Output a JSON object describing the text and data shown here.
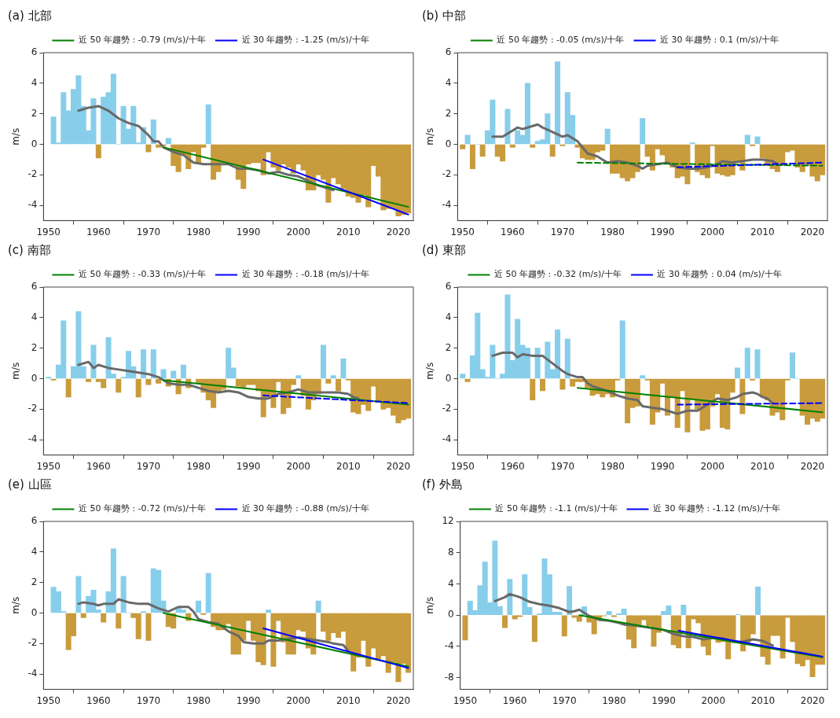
{
  "chart_data": [
    {
      "type": "bar",
      "title": "(a) 北部",
      "ylabel": "m/s",
      "legend": "top",
      "xlim": [
        1949,
        2023
      ],
      "xticks": [
        1950,
        1960,
        1970,
        1980,
        1990,
        2000,
        2010,
        2020
      ],
      "ylim": [
        -5,
        6
      ],
      "yticks": [
        -4,
        -2,
        0,
        2,
        4,
        6
      ],
      "x": [
        1951,
        1952,
        1953,
        1954,
        1955,
        1956,
        1957,
        1958,
        1959,
        1960,
        1961,
        1962,
        1963,
        1964,
        1965,
        1966,
        1967,
        1968,
        1969,
        1970,
        1971,
        1972,
        1973,
        1974,
        1975,
        1976,
        1977,
        1978,
        1979,
        1980,
        1981,
        1982,
        1983,
        1984,
        1985,
        1986,
        1987,
        1988,
        1989,
        1990,
        1991,
        1992,
        1993,
        1994,
        1995,
        1996,
        1997,
        1998,
        1999,
        2000,
        2001,
        2002,
        2003,
        2004,
        2005,
        2006,
        2007,
        2008,
        2009,
        2010,
        2011,
        2012,
        2013,
        2014,
        2015,
        2016,
        2017,
        2018,
        2019,
        2020,
        2021,
        2022
      ],
      "series": [
        {
          "values": [
            1.8,
            0.1,
            3.4,
            2.2,
            3.6,
            4.5,
            2.5,
            0.9,
            3.0,
            -0.9,
            3.1,
            3.4,
            4.6,
            0,
            2.5,
            1.0,
            2.5,
            0.1,
            1.1,
            -0.5,
            1.6,
            -0.2,
            -0.1,
            0.4,
            -1.4,
            -1.8,
            -0.7,
            -1.6,
            -0.5,
            -1.3,
            -0.2,
            2.6,
            -2.3,
            -1.8,
            -1.2,
            -1.3,
            -1.3,
            -2.3,
            -2.9,
            -1.3,
            -1.2,
            -1.2,
            -2.0,
            -0.5,
            -1.5,
            -1.7,
            -1.3,
            -1.5,
            -1.9,
            -1.3,
            -1.7,
            -3.0,
            -3.0,
            -2.0,
            -2.3,
            -3.8,
            -2.2,
            -2.6,
            -2.9,
            -3.4,
            -3.5,
            -3.8,
            -3.3,
            -4.1,
            -1.4,
            -2.1,
            -4.3,
            -4.2,
            -4.2,
            -4.7,
            -4.6,
            -4.5
          ],
          "colors": [
            "#87ceeb",
            "#87ceeb",
            "#87ceeb",
            "#87ceeb",
            "#87ceeb",
            "#87ceeb",
            "#87ceeb",
            "#87ceeb",
            "#87ceeb",
            "#c89b3c",
            "#87ceeb",
            "#87ceeb",
            "#87ceeb",
            "#87ceeb",
            "#87ceeb",
            "#87ceeb",
            "#87ceeb",
            "#87ceeb",
            "#87ceeb",
            "#c89b3c",
            "#87ceeb",
            "#c89b3c",
            "#c89b3c",
            "#87ceeb",
            "#c89b3c",
            "#c89b3c",
            "#c89b3c",
            "#c89b3c",
            "#c89b3c",
            "#c89b3c",
            "#c89b3c",
            "#87ceeb",
            "#c89b3c",
            "#c89b3c",
            "#c89b3c",
            "#c89b3c",
            "#c89b3c",
            "#c89b3c",
            "#c89b3c",
            "#c89b3c",
            "#c89b3c",
            "#c89b3c",
            "#c89b3c",
            "#c89b3c",
            "#c89b3c",
            "#c89b3c",
            "#c89b3c",
            "#c89b3c",
            "#c89b3c",
            "#c89b3c",
            "#c89b3c",
            "#c89b3c",
            "#c89b3c",
            "#c89b3c",
            "#c89b3c",
            "#c89b3c",
            "#c89b3c",
            "#c89b3c",
            "#c89b3c",
            "#c89b3c",
            "#c89b3c",
            "#c89b3c",
            "#c89b3c",
            "#c89b3c",
            "#c89b3c",
            "#c89b3c",
            "#c89b3c",
            "#c89b3c",
            "#c89b3c",
            "#c89b3c",
            "#c89b3c",
            "#c89b3c"
          ]
        },
        {
          "type": "line",
          "color": "#696969",
          "x": [
            1956,
            1958,
            1960,
            1962,
            1964,
            1966,
            1968,
            1970,
            1971,
            1972,
            1973,
            1975,
            1977,
            1979,
            1981,
            1984,
            1986,
            1988,
            1990,
            1992,
            1994,
            1996,
            1998,
            2000,
            2002,
            2004,
            2006,
            2007
          ],
          "values": [
            2.2,
            2.4,
            2.5,
            2.2,
            1.7,
            1.4,
            1.2,
            0.6,
            0.2,
            0.2,
            -0.2,
            -0.5,
            -0.7,
            -1.2,
            -1.3,
            -1.3,
            -1.3,
            -1.6,
            -1.6,
            -1.7,
            -1.9,
            -1.8,
            -2.0,
            -2.1,
            -2.4,
            -2.7,
            -2.9,
            -3.0
          ]
        },
        {
          "type": "line",
          "name": "近 50 年趨勢 : -0.79 (m/s)/十年",
          "color": "#008000",
          "line_style": "solid",
          "x": [
            1973,
            2022
          ],
          "values": [
            -0.2,
            -4.1
          ]
        },
        {
          "type": "line",
          "name": "近 30 年趨勢 : -1.25 (m/s)/十年",
          "color": "#0000ff",
          "line_style": "solid",
          "x": [
            1993,
            2022
          ],
          "values": [
            -1.0,
            -4.6
          ]
        }
      ]
    },
    {
      "type": "bar",
      "title": "(b) 中部",
      "ylabel": "m/s",
      "legend": "top",
      "xlim": [
        1949,
        2023
      ],
      "xticks": [
        1950,
        1960,
        1970,
        1980,
        1990,
        2000,
        2010,
        2020
      ],
      "ylim": [
        -5,
        6
      ],
      "yticks": [
        -4,
        -2,
        0,
        2,
        4,
        6
      ],
      "x": [
        1950,
        1951,
        1952,
        1953,
        1954,
        1955,
        1956,
        1957,
        1958,
        1959,
        1960,
        1961,
        1962,
        1963,
        1964,
        1965,
        1966,
        1967,
        1968,
        1969,
        1970,
        1971,
        1972,
        1973,
        1974,
        1975,
        1976,
        1977,
        1978,
        1979,
        1980,
        1981,
        1982,
        1983,
        1984,
        1985,
        1986,
        1987,
        1988,
        1989,
        1990,
        1991,
        1992,
        1993,
        1994,
        1995,
        1996,
        1997,
        1998,
        1999,
        2000,
        2001,
        2002,
        2003,
        2004,
        2005,
        2006,
        2007,
        2008,
        2009,
        2010,
        2011,
        2012,
        2013,
        2014,
        2015,
        2016,
        2017,
        2018,
        2019,
        2020,
        2021,
        2022
      ],
      "series": [
        {
          "values": [
            -0.3,
            0.6,
            -1.6,
            0,
            -0.8,
            0.9,
            2.9,
            -0.8,
            -1.1,
            2.3,
            -0.2,
            0.9,
            0.6,
            4.0,
            -0.2,
            0.2,
            0.3,
            2.0,
            -0.8,
            5.4,
            -0.1,
            3.4,
            1.9,
            -0.2,
            -0.9,
            -1.0,
            -1.0,
            -0.5,
            -0.4,
            1.0,
            -1.9,
            -1.9,
            -2.2,
            -2.4,
            -2.2,
            -1.8,
            1.7,
            -0.8,
            -1.7,
            -0.3,
            -0.7,
            -1.3,
            -1.5,
            -2.2,
            -2.1,
            -2.6,
            0.1,
            -1.8,
            -2.0,
            -2.2,
            -0.1,
            -1.9,
            -2.0,
            -2.1,
            -2.0,
            -1.1,
            -1.7,
            0.6,
            -0.1,
            0.5,
            -0.9,
            -1.4,
            -1.6,
            -1.8,
            -1.4,
            -0.5,
            -0.4,
            -1.5,
            -1.8,
            -1.4,
            -2.1,
            -2.4,
            -2.0
          ],
          "colors": [
            "#c89b3c",
            "#87ceeb",
            "#c89b3c",
            "#87ceeb",
            "#c89b3c",
            "#87ceeb",
            "#87ceeb",
            "#c89b3c",
            "#c89b3c",
            "#87ceeb",
            "#c89b3c",
            "#87ceeb",
            "#87ceeb",
            "#87ceeb",
            "#c89b3c",
            "#87ceeb",
            "#87ceeb",
            "#87ceeb",
            "#c89b3c",
            "#87ceeb",
            "#c89b3c",
            "#87ceeb",
            "#87ceeb",
            "#c89b3c",
            "#c89b3c",
            "#c89b3c",
            "#c89b3c",
            "#c89b3c",
            "#c89b3c",
            "#87ceeb",
            "#c89b3c",
            "#c89b3c",
            "#c89b3c",
            "#c89b3c",
            "#c89b3c",
            "#c89b3c",
            "#87ceeb",
            "#c89b3c",
            "#c89b3c",
            "#c89b3c",
            "#c89b3c",
            "#c89b3c",
            "#c89b3c",
            "#c89b3c",
            "#c89b3c",
            "#c89b3c",
            "#87ceeb",
            "#c89b3c",
            "#c89b3c",
            "#c89b3c",
            "#c89b3c",
            "#c89b3c",
            "#c89b3c",
            "#c89b3c",
            "#c89b3c",
            "#c89b3c",
            "#c89b3c",
            "#87ceeb",
            "#c89b3c",
            "#87ceeb",
            "#c89b3c",
            "#c89b3c",
            "#c89b3c",
            "#c89b3c",
            "#c89b3c",
            "#c89b3c",
            "#c89b3c",
            "#c89b3c",
            "#c89b3c",
            "#c89b3c",
            "#c89b3c",
            "#c89b3c",
            "#c89b3c"
          ]
        },
        {
          "type": "line",
          "color": "#696969",
          "x": [
            1956,
            1958,
            1959,
            1961,
            1962,
            1964,
            1965,
            1966,
            1968,
            1970,
            1971,
            1972,
            1973,
            1974,
            1975,
            1977,
            1978,
            1979,
            1981,
            1983,
            1985,
            1986,
            1987,
            1989,
            1991,
            1993,
            1995,
            1997,
            1999,
            2001,
            2002,
            2004,
            2006,
            2008,
            2010,
            2012,
            2013
          ],
          "values": [
            0.5,
            0.5,
            0.7,
            1.1,
            1.0,
            1.2,
            1.3,
            1.1,
            0.8,
            0.5,
            0.6,
            0.4,
            0.2,
            -0.2,
            -0.6,
            -0.8,
            -1.0,
            -1.2,
            -1.1,
            -1.2,
            -1.4,
            -1.6,
            -1.4,
            -1.3,
            -1.2,
            -1.5,
            -1.6,
            -1.6,
            -1.5,
            -1.3,
            -1.1,
            -1.2,
            -1.1,
            -1.0,
            -1.0,
            -1.1,
            -1.3
          ]
        },
        {
          "type": "line",
          "name": "近 50 年趨勢 : -0.05 (m/s)/十年",
          "color": "#008000",
          "line_style": "dashed",
          "x": [
            1973,
            2022
          ],
          "values": [
            -1.2,
            -1.4
          ]
        },
        {
          "type": "line",
          "name": "近 30 年趨勢 : 0.1 (m/s)/十年",
          "color": "#0000ff",
          "line_style": "dashed",
          "x": [
            1993,
            2022
          ],
          "values": [
            -1.5,
            -1.2
          ]
        }
      ]
    },
    {
      "type": "bar",
      "title": "(c) 南部",
      "ylabel": "m/s",
      "legend": "top",
      "xlim": [
        1949,
        2023
      ],
      "xticks": [
        1950,
        1960,
        1970,
        1980,
        1990,
        2000,
        2010,
        2020
      ],
      "ylim": [
        -5,
        6
      ],
      "yticks": [
        -4,
        -2,
        0,
        2,
        4,
        6
      ],
      "x": [
        1950,
        1951,
        1952,
        1953,
        1954,
        1955,
        1956,
        1957,
        1958,
        1959,
        1960,
        1961,
        1962,
        1963,
        1964,
        1965,
        1966,
        1967,
        1968,
        1969,
        1970,
        1971,
        1972,
        1973,
        1974,
        1975,
        1976,
        1977,
        1978,
        1979,
        1980,
        1981,
        1982,
        1983,
        1984,
        1985,
        1986,
        1987,
        1988,
        1989,
        1990,
        1991,
        1992,
        1993,
        1994,
        1995,
        1996,
        1997,
        1998,
        1999,
        2000,
        2001,
        2002,
        2003,
        2004,
        2005,
        2006,
        2007,
        2008,
        2009,
        2010,
        2011,
        2012,
        2013,
        2014,
        2015,
        2016,
        2017,
        2018,
        2019,
        2020,
        2021,
        2022
      ],
      "series": [
        {
          "values": [
            0.1,
            -0.1,
            0.9,
            3.8,
            -1.2,
            0.8,
            4.4,
            0.8,
            -0.2,
            2.2,
            -0.2,
            -0.6,
            2.7,
            0.3,
            -0.9,
            0.1,
            1.8,
            0.8,
            -1.2,
            1.9,
            -0.4,
            1.9,
            -0.3,
            0.6,
            -0.5,
            0.5,
            -1.0,
            0.9,
            -0.6,
            null,
            -0.3,
            -0.9,
            -1.4,
            -1.9,
            -0.9,
            -0.7,
            2.0,
            0.7,
            -0.5,
            -0.6,
            -0.4,
            -0.4,
            -0.8,
            -2.5,
            -1.2,
            -1.9,
            -0.2,
            -2.3,
            -1.9,
            -0.4,
            0.2,
            -1.1,
            -2.0,
            -1.4,
            -1.0,
            2.2,
            -0.3,
            0.2,
            -0.8,
            1.3,
            -0.1,
            -2.2,
            -2.3,
            -1.7,
            -2.1,
            -0.5,
            -1.5,
            -2.0,
            -1.9,
            -2.4,
            -2.9,
            -2.7,
            -2.6
          ],
          "colors": [
            "#87ceeb",
            "#c89b3c",
            "#87ceeb",
            "#87ceeb",
            "#c89b3c",
            "#87ceeb",
            "#87ceeb",
            "#87ceeb",
            "#c89b3c",
            "#87ceeb",
            "#c89b3c",
            "#c89b3c",
            "#87ceeb",
            "#87ceeb",
            "#c89b3c",
            "#87ceeb",
            "#87ceeb",
            "#87ceeb",
            "#c89b3c",
            "#87ceeb",
            "#c89b3c",
            "#87ceeb",
            "#c89b3c",
            "#87ceeb",
            "#c89b3c",
            "#87ceeb",
            "#c89b3c",
            "#87ceeb",
            "#c89b3c",
            "#c89b3c",
            "#c89b3c",
            "#c89b3c",
            "#c89b3c",
            "#c89b3c",
            "#c89b3c",
            "#c89b3c",
            "#87ceeb",
            "#87ceeb",
            "#c89b3c",
            "#c89b3c",
            "#c89b3c",
            "#c89b3c",
            "#c89b3c",
            "#c89b3c",
            "#c89b3c",
            "#c89b3c",
            "#c89b3c",
            "#c89b3c",
            "#c89b3c",
            "#c89b3c",
            "#87ceeb",
            "#c89b3c",
            "#c89b3c",
            "#c89b3c",
            "#c89b3c",
            "#87ceeb",
            "#c89b3c",
            "#87ceeb",
            "#c89b3c",
            "#87ceeb",
            "#c89b3c",
            "#c89b3c",
            "#c89b3c",
            "#c89b3c",
            "#c89b3c",
            "#c89b3c",
            "#c89b3c",
            "#c89b3c",
            "#c89b3c",
            "#c89b3c",
            "#c89b3c",
            "#c89b3c",
            "#c89b3c"
          ]
        },
        {
          "type": "line",
          "color": "#696969",
          "x": [
            1956,
            1958,
            1959,
            1960,
            1962,
            1964,
            1966,
            1968,
            1970,
            1972,
            1974,
            1976,
            1978,
            1980,
            1982,
            1984,
            1986,
            1988,
            1990,
            1992,
            1994,
            1996,
            1998,
            2000,
            2002,
            2004,
            2006,
            2008,
            2010,
            2011,
            2012
          ],
          "values": [
            0.9,
            1.1,
            0.7,
            0.9,
            0.7,
            0.6,
            0.5,
            0.4,
            0.3,
            0.1,
            -0.3,
            -0.4,
            -0.4,
            -0.6,
            -0.8,
            -0.9,
            -0.8,
            -0.9,
            -1.2,
            -1.3,
            -1.3,
            -1.0,
            -0.9,
            -0.7,
            -0.9,
            -0.9,
            -0.9,
            -0.9,
            -1.0,
            -1.2,
            -1.3
          ]
        },
        {
          "type": "line",
          "name": "近 50 年趨勢 : -0.33 (m/s)/十年",
          "color": "#008000",
          "line_style": "solid",
          "x": [
            1973,
            2022
          ],
          "values": [
            -0.1,
            -1.7
          ]
        },
        {
          "type": "line",
          "name": "近 30 年趨勢 : -0.18 (m/s)/十年",
          "color": "#0000ff",
          "line_style": "dashed",
          "x": [
            1993,
            2022
          ],
          "values": [
            -1.1,
            -1.6
          ]
        }
      ]
    },
    {
      "type": "bar",
      "title": "(d) 東部",
      "ylabel": "m/s",
      "legend": "top",
      "xlim": [
        1949,
        2023
      ],
      "xticks": [
        1950,
        1960,
        1970,
        1980,
        1990,
        2000,
        2010,
        2020
      ],
      "ylim": [
        -5,
        6
      ],
      "yticks": [
        -4,
        -2,
        0,
        2,
        4,
        6
      ],
      "x": [
        1950,
        1951,
        1952,
        1953,
        1954,
        1955,
        1956,
        1957,
        1958,
        1959,
        1960,
        1961,
        1962,
        1963,
        1964,
        1965,
        1966,
        1967,
        1968,
        1969,
        1970,
        1971,
        1972,
        1973,
        1974,
        1975,
        1976,
        1977,
        1978,
        1979,
        1980,
        1981,
        1982,
        1983,
        1984,
        1985,
        1986,
        1987,
        1988,
        1989,
        1990,
        1991,
        1992,
        1993,
        1994,
        1995,
        1996,
        1997,
        1998,
        1999,
        2000,
        2001,
        2002,
        2003,
        2004,
        2005,
        2006,
        2007,
        2008,
        2009,
        2010,
        2011,
        2012,
        2013,
        2014,
        2015,
        2016,
        2017,
        2018,
        2019,
        2020,
        2021,
        2022
      ],
      "series": [
        {
          "values": [
            0.3,
            -0.2,
            1.5,
            4.3,
            0.6,
            0.1,
            2.2,
            0,
            0.3,
            5.5,
            1.2,
            3.9,
            2.2,
            2.0,
            -1.4,
            2.0,
            -0.8,
            2.4,
            0.6,
            3.2,
            -0.7,
            2.6,
            -0.5,
            -0.2,
            -0.2,
            -0.6,
            -1.1,
            -1.0,
            -1.2,
            -1.0,
            -1.2,
            -0.1,
            3.8,
            -2.9,
            -1.9,
            -1.8,
            0.2,
            -0.1,
            -3.0,
            -2.2,
            -0.3,
            -2.4,
            -1.2,
            -3.2,
            -0.8,
            -3.5,
            -1.3,
            -2.0,
            -3.4,
            -3.3,
            -1.8,
            -1.0,
            -3.2,
            -3.3,
            -0.9,
            0.7,
            -2.3,
            2.0,
            -0.1,
            1.9,
            -1.2,
            -1.4,
            -2.4,
            -2.2,
            -2.7,
            -0.1,
            1.7,
            0,
            -2.4,
            -3.0,
            -2.6,
            -2.8,
            -2.6
          ],
          "colors": [
            "#87ceeb",
            "#c89b3c",
            "#87ceeb",
            "#87ceeb",
            "#87ceeb",
            "#87ceeb",
            "#87ceeb",
            "#87ceeb",
            "#87ceeb",
            "#87ceeb",
            "#87ceeb",
            "#87ceeb",
            "#87ceeb",
            "#87ceeb",
            "#c89b3c",
            "#87ceeb",
            "#c89b3c",
            "#87ceeb",
            "#87ceeb",
            "#87ceeb",
            "#c89b3c",
            "#87ceeb",
            "#c89b3c",
            "#c89b3c",
            "#c89b3c",
            "#c89b3c",
            "#c89b3c",
            "#c89b3c",
            "#c89b3c",
            "#c89b3c",
            "#c89b3c",
            "#c89b3c",
            "#87ceeb",
            "#c89b3c",
            "#c89b3c",
            "#c89b3c",
            "#87ceeb",
            "#c89b3c",
            "#c89b3c",
            "#c89b3c",
            "#c89b3c",
            "#c89b3c",
            "#c89b3c",
            "#c89b3c",
            "#c89b3c",
            "#c89b3c",
            "#c89b3c",
            "#c89b3c",
            "#c89b3c",
            "#c89b3c",
            "#c89b3c",
            "#c89b3c",
            "#c89b3c",
            "#c89b3c",
            "#c89b3c",
            "#87ceeb",
            "#c89b3c",
            "#87ceeb",
            "#c89b3c",
            "#87ceeb",
            "#c89b3c",
            "#c89b3c",
            "#c89b3c",
            "#c89b3c",
            "#c89b3c",
            "#c89b3c",
            "#87ceeb",
            "#87ceeb",
            "#c89b3c",
            "#c89b3c",
            "#c89b3c",
            "#c89b3c",
            "#c89b3c"
          ]
        },
        {
          "type": "line",
          "color": "#696969",
          "x": [
            1956,
            1958,
            1960,
            1961,
            1962,
            1964,
            1966,
            1968,
            1970,
            1971,
            1973,
            1974,
            1975,
            1976,
            1978,
            1979,
            1981,
            1983,
            1985,
            1986,
            1988,
            1990,
            1992,
            1993,
            1995,
            1997,
            1999,
            2001,
            2003,
            2005,
            2006,
            2008,
            2009,
            2010,
            2011,
            2012
          ],
          "values": [
            1.5,
            1.7,
            1.7,
            1.4,
            1.6,
            1.5,
            1.5,
            1.0,
            0.5,
            0.3,
            0.1,
            0.1,
            -0.3,
            -0.5,
            -0.7,
            -0.8,
            -1.1,
            -1.3,
            -1.4,
            -1.8,
            -1.9,
            -2.0,
            -2.2,
            -2.3,
            -2.1,
            -2.1,
            -1.7,
            -1.3,
            -1.4,
            -1.2,
            -1.0,
            -0.9,
            -1.0,
            -1.2,
            -1.3,
            -1.6
          ]
        },
        {
          "type": "line",
          "name": "近 50 年趨勢 : -0.32 (m/s)/十年",
          "color": "#008000",
          "line_style": "solid",
          "x": [
            1973,
            2022
          ],
          "values": [
            -0.6,
            -2.2
          ]
        },
        {
          "type": "line",
          "name": "近 30 年趨勢 : 0.04 (m/s)/十年",
          "color": "#0000ff",
          "line_style": "dashed",
          "x": [
            1993,
            2022
          ],
          "values": [
            -1.7,
            -1.6
          ]
        }
      ]
    },
    {
      "type": "bar",
      "title": "(e) 山區",
      "ylabel": "m/s",
      "legend": "top",
      "xlim": [
        1949,
        2023
      ],
      "xticks": [
        1950,
        1960,
        1970,
        1980,
        1990,
        2000,
        2010,
        2020
      ],
      "ylim": [
        -5,
        6
      ],
      "yticks": [
        -4,
        -2,
        0,
        2,
        4,
        6
      ],
      "x": [
        1951,
        1952,
        1953,
        1954,
        1955,
        1956,
        1957,
        1958,
        1959,
        1960,
        1961,
        1962,
        1963,
        1964,
        1965,
        1966,
        1967,
        1968,
        1969,
        1970,
        1971,
        1972,
        1973,
        1974,
        1975,
        1976,
        1977,
        1978,
        1979,
        1980,
        1981,
        1982,
        1983,
        1984,
        1985,
        1986,
        1987,
        1988,
        1989,
        1990,
        1991,
        1992,
        1993,
        1994,
        1995,
        1996,
        1997,
        1998,
        1999,
        2000,
        2001,
        2002,
        2003,
        2004,
        2005,
        2006,
        2007,
        2008,
        2009,
        2010,
        2011,
        2012,
        2013,
        2014,
        2015,
        2016,
        2017,
        2018,
        2019,
        2020,
        2021,
        2022
      ],
      "series": [
        {
          "values": [
            1.7,
            1.4,
            0.1,
            -2.4,
            -1.5,
            2.4,
            -0.3,
            1.1,
            1.5,
            0.2,
            -0.6,
            1.4,
            4.2,
            -1.0,
            2.4,
            0,
            -0.3,
            -1.7,
            0.1,
            -1.8,
            2.9,
            2.8,
            0.8,
            -0.9,
            -1.0,
            0.4,
            0.2,
            -0.5,
            null,
            0.8,
            -0.1,
            2.6,
            -0.9,
            -1.1,
            -1.1,
            -0.7,
            -2.7,
            -2.7,
            -1.8,
            -0.5,
            -1.8,
            -3.2,
            -3.4,
            0.2,
            -3.5,
            -0.5,
            -1.9,
            -2.7,
            -2.7,
            -1.1,
            -1.2,
            -2.3,
            -2.7,
            0.8,
            -1.2,
            -1.8,
            -1.3,
            -1.6,
            -1.2,
            -2.5,
            -3.8,
            -2.9,
            -1.8,
            -3.5,
            -2.3,
            -3.0,
            -2.8,
            -3.9,
            -3.2,
            -4.5,
            -3.3,
            -3.9
          ],
          "colors": [
            "#87ceeb",
            "#87ceeb",
            "#87ceeb",
            "#c89b3c",
            "#c89b3c",
            "#87ceeb",
            "#c89b3c",
            "#87ceeb",
            "#87ceeb",
            "#87ceeb",
            "#c89b3c",
            "#87ceeb",
            "#87ceeb",
            "#c89b3c",
            "#87ceeb",
            "#87ceeb",
            "#c89b3c",
            "#c89b3c",
            "#87ceeb",
            "#c89b3c",
            "#87ceeb",
            "#87ceeb",
            "#87ceeb",
            "#c89b3c",
            "#c89b3c",
            "#87ceeb",
            "#87ceeb",
            "#c89b3c",
            "#87ceeb",
            "#87ceeb",
            "#c89b3c",
            "#87ceeb",
            "#c89b3c",
            "#c89b3c",
            "#c89b3c",
            "#c89b3c",
            "#c89b3c",
            "#c89b3c",
            "#c89b3c",
            "#c89b3c",
            "#c89b3c",
            "#c89b3c",
            "#c89b3c",
            "#87ceeb",
            "#c89b3c",
            "#c89b3c",
            "#c89b3c",
            "#c89b3c",
            "#c89b3c",
            "#c89b3c",
            "#c89b3c",
            "#c89b3c",
            "#c89b3c",
            "#87ceeb",
            "#c89b3c",
            "#c89b3c",
            "#c89b3c",
            "#c89b3c",
            "#c89b3c",
            "#c89b3c",
            "#c89b3c",
            "#c89b3c",
            "#c89b3c",
            "#c89b3c",
            "#c89b3c",
            "#c89b3c",
            "#c89b3c",
            "#c89b3c",
            "#c89b3c",
            "#c89b3c",
            "#c89b3c",
            "#c89b3c"
          ]
        },
        {
          "type": "line",
          "color": "#696969",
          "x": [
            1956,
            1957,
            1959,
            1960,
            1961,
            1963,
            1964,
            1966,
            1968,
            1970,
            1972,
            1974,
            1976,
            1978,
            1979,
            1980,
            1982,
            1984,
            1986,
            1988,
            1989,
            1991,
            1993,
            1994,
            1996,
            1998,
            2000,
            2002,
            2004,
            2006,
            2007,
            2009,
            2010
          ],
          "values": [
            0.6,
            0.7,
            0.6,
            0.5,
            0.6,
            0.6,
            0.9,
            0.7,
            0.6,
            0.6,
            0.3,
            0.1,
            0.4,
            0.4,
            0.1,
            -0.4,
            -0.6,
            -0.7,
            -1.2,
            -1.5,
            -1.9,
            -2.0,
            -2.0,
            -1.8,
            -1.8,
            -1.7,
            -1.6,
            -1.7,
            -1.8,
            -1.9,
            -2.0,
            -2.1,
            -2.5
          ]
        },
        {
          "type": "line",
          "name": "近 50 年趨勢 : -0.72 (m/s)/十年",
          "color": "#008000",
          "line_style": "solid",
          "x": [
            1973,
            2022
          ],
          "values": [
            0.0,
            -3.5
          ]
        },
        {
          "type": "line",
          "name": "近 30 年趨勢 : -0.88 (m/s)/十年",
          "color": "#0000ff",
          "line_style": "solid",
          "x": [
            1993,
            2022
          ],
          "values": [
            -1.0,
            -3.6
          ]
        }
      ]
    },
    {
      "type": "bar",
      "title": "(f) 外島",
      "ylabel": "m/s",
      "legend": "top",
      "xlim": [
        1949,
        2023
      ],
      "xticks": [
        1950,
        1960,
        1970,
        1980,
        1990,
        2000,
        2010,
        2020
      ],
      "ylim": [
        -9.5,
        12
      ],
      "yticks": [
        -8,
        -4,
        0,
        4,
        8,
        12
      ],
      "x": [
        1950,
        1951,
        1952,
        1953,
        1954,
        1955,
        1956,
        1957,
        1958,
        1959,
        1960,
        1961,
        1962,
        1963,
        1964,
        1965,
        1966,
        1967,
        1968,
        1969,
        1970,
        1971,
        1972,
        1973,
        1974,
        1975,
        1976,
        1977,
        1978,
        1979,
        1980,
        1981,
        1982,
        1983,
        1984,
        1985,
        1986,
        1987,
        1988,
        1989,
        1990,
        1991,
        1992,
        1993,
        1994,
        1995,
        1996,
        1997,
        1998,
        1999,
        2000,
        2001,
        2002,
        2003,
        2004,
        2005,
        2006,
        2007,
        2008,
        2009,
        2010,
        2011,
        2012,
        2013,
        2014,
        2015,
        2016,
        2017,
        2018,
        2019,
        2020,
        2021,
        2022
      ],
      "series": [
        {
          "values": [
            -3.2,
            1.8,
            0.6,
            3.8,
            6.8,
            1.6,
            9.5,
            1.1,
            -1.6,
            4.6,
            -0.5,
            -0.2,
            5.2,
            1.0,
            -3.4,
            0.2,
            7.2,
            5.2,
            0.4,
            0.4,
            -2.7,
            3.7,
            -0.3,
            -0.8,
            1.1,
            -0.9,
            -2.4,
            -0.5,
            -0.1,
            0.5,
            -0.2,
            0.2,
            0.8,
            -3.1,
            -4.2,
            -1.5,
            -0.6,
            -1.4,
            -4.0,
            -2.2,
            0.5,
            1.2,
            -3.8,
            -4.2,
            1.3,
            -4.2,
            -0.5,
            -1.0,
            -4.0,
            -5.1,
            -3.0,
            -3.5,
            -3.4,
            -5.6,
            -3.5,
            0.1,
            -4.6,
            -3.5,
            -2.4,
            3.6,
            -5.3,
            -6.3,
            -2.6,
            -2.6,
            -5.5,
            -0.3,
            -3.4,
            -6.2,
            -6.5,
            -5.7,
            -7.9,
            -6.3,
            -6.3
          ],
          "colors": [
            "#c89b3c",
            "#87ceeb",
            "#87ceeb",
            "#87ceeb",
            "#87ceeb",
            "#87ceeb",
            "#87ceeb",
            "#87ceeb",
            "#c89b3c",
            "#87ceeb",
            "#c89b3c",
            "#c89b3c",
            "#87ceeb",
            "#87ceeb",
            "#c89b3c",
            "#87ceeb",
            "#87ceeb",
            "#87ceeb",
            "#87ceeb",
            "#87ceeb",
            "#c89b3c",
            "#87ceeb",
            "#c89b3c",
            "#c89b3c",
            "#87ceeb",
            "#c89b3c",
            "#c89b3c",
            "#c89b3c",
            "#c89b3c",
            "#87ceeb",
            "#c89b3c",
            "#87ceeb",
            "#87ceeb",
            "#c89b3c",
            "#c89b3c",
            "#c89b3c",
            "#c89b3c",
            "#c89b3c",
            "#c89b3c",
            "#c89b3c",
            "#87ceeb",
            "#87ceeb",
            "#c89b3c",
            "#c89b3c",
            "#87ceeb",
            "#c89b3c",
            "#c89b3c",
            "#c89b3c",
            "#c89b3c",
            "#c89b3c",
            "#c89b3c",
            "#c89b3c",
            "#c89b3c",
            "#c89b3c",
            "#c89b3c",
            "#87ceeb",
            "#c89b3c",
            "#c89b3c",
            "#c89b3c",
            "#87ceeb",
            "#c89b3c",
            "#c89b3c",
            "#c89b3c",
            "#c89b3c",
            "#c89b3c",
            "#c89b3c",
            "#c89b3c",
            "#c89b3c",
            "#c89b3c",
            "#c89b3c",
            "#c89b3c",
            "#c89b3c",
            "#c89b3c"
          ]
        },
        {
          "type": "line",
          "color": "#696969",
          "x": [
            1956,
            1958,
            1959,
            1961,
            1963,
            1965,
            1967,
            1969,
            1971,
            1972,
            1973,
            1974,
            1975,
            1977,
            1979,
            1981,
            1982,
            1984,
            1986,
            1988,
            1990,
            1992,
            1994,
            1996,
            1998,
            2000,
            2002,
            2004,
            2006,
            2008,
            2010,
            2011,
            2012
          ],
          "values": [
            1.8,
            2.3,
            2.7,
            2.3,
            1.7,
            1.4,
            1.2,
            0.9,
            0.4,
            0.5,
            0.7,
            0.3,
            -0.1,
            -0.6,
            -0.7,
            -1.0,
            -1.2,
            -1.3,
            -1.5,
            -1.7,
            -1.9,
            -2.4,
            -2.7,
            -2.8,
            -3.1,
            -2.9,
            -3.0,
            -3.4,
            -3.4,
            -3.1,
            -3.3,
            -3.6,
            -3.9
          ]
        },
        {
          "type": "line",
          "name": "近 50 年趨勢 : -1.1 (m/s)/十年",
          "color": "#008000",
          "line_style": "solid",
          "x": [
            1973,
            2022
          ],
          "values": [
            0.0,
            -5.4
          ]
        },
        {
          "type": "line",
          "name": "近 30 年趨勢 : -1.12 (m/s)/十年",
          "color": "#0000ff",
          "line_style": "solid",
          "x": [
            1993,
            2022
          ],
          "values": [
            -2.0,
            -5.3
          ]
        }
      ]
    }
  ]
}
